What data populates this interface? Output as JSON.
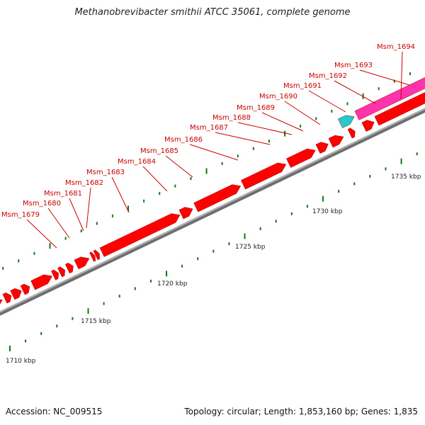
{
  "title": "Methanobrevibacter smithii ATCC 35061, complete genome",
  "footer": {
    "accession": "Accession: NC_009515",
    "summary": "Topology: circular; Length: 1,853,160 bp; Genes: 1,835"
  },
  "colors": {
    "forward_gene": "#ff0000",
    "rna_gene_pink": "#ff33aa",
    "rna_gene_cyan": "#22cccc",
    "backbone": "#8c8c8c",
    "tick": "#117711",
    "gene_label": "#cc0000"
  },
  "kbp_labels": [
    "1710 kbp",
    "1715 kbp",
    "1720 kbp",
    "1725 kbp",
    "1730 kbp",
    "1735 kbp"
  ],
  "gene_labels": [
    "Msm_1679",
    "Msm_1680",
    "Msm_1681",
    "Msm_1682",
    "Msm_1683",
    "Msm_1684",
    "Msm_1685",
    "Msm_1686",
    "Msm_1687",
    "Msm_1688",
    "Msm_1689",
    "Msm_1690",
    "Msm_1691",
    "Msm_1692",
    "Msm_1693",
    "Msm_1694"
  ]
}
